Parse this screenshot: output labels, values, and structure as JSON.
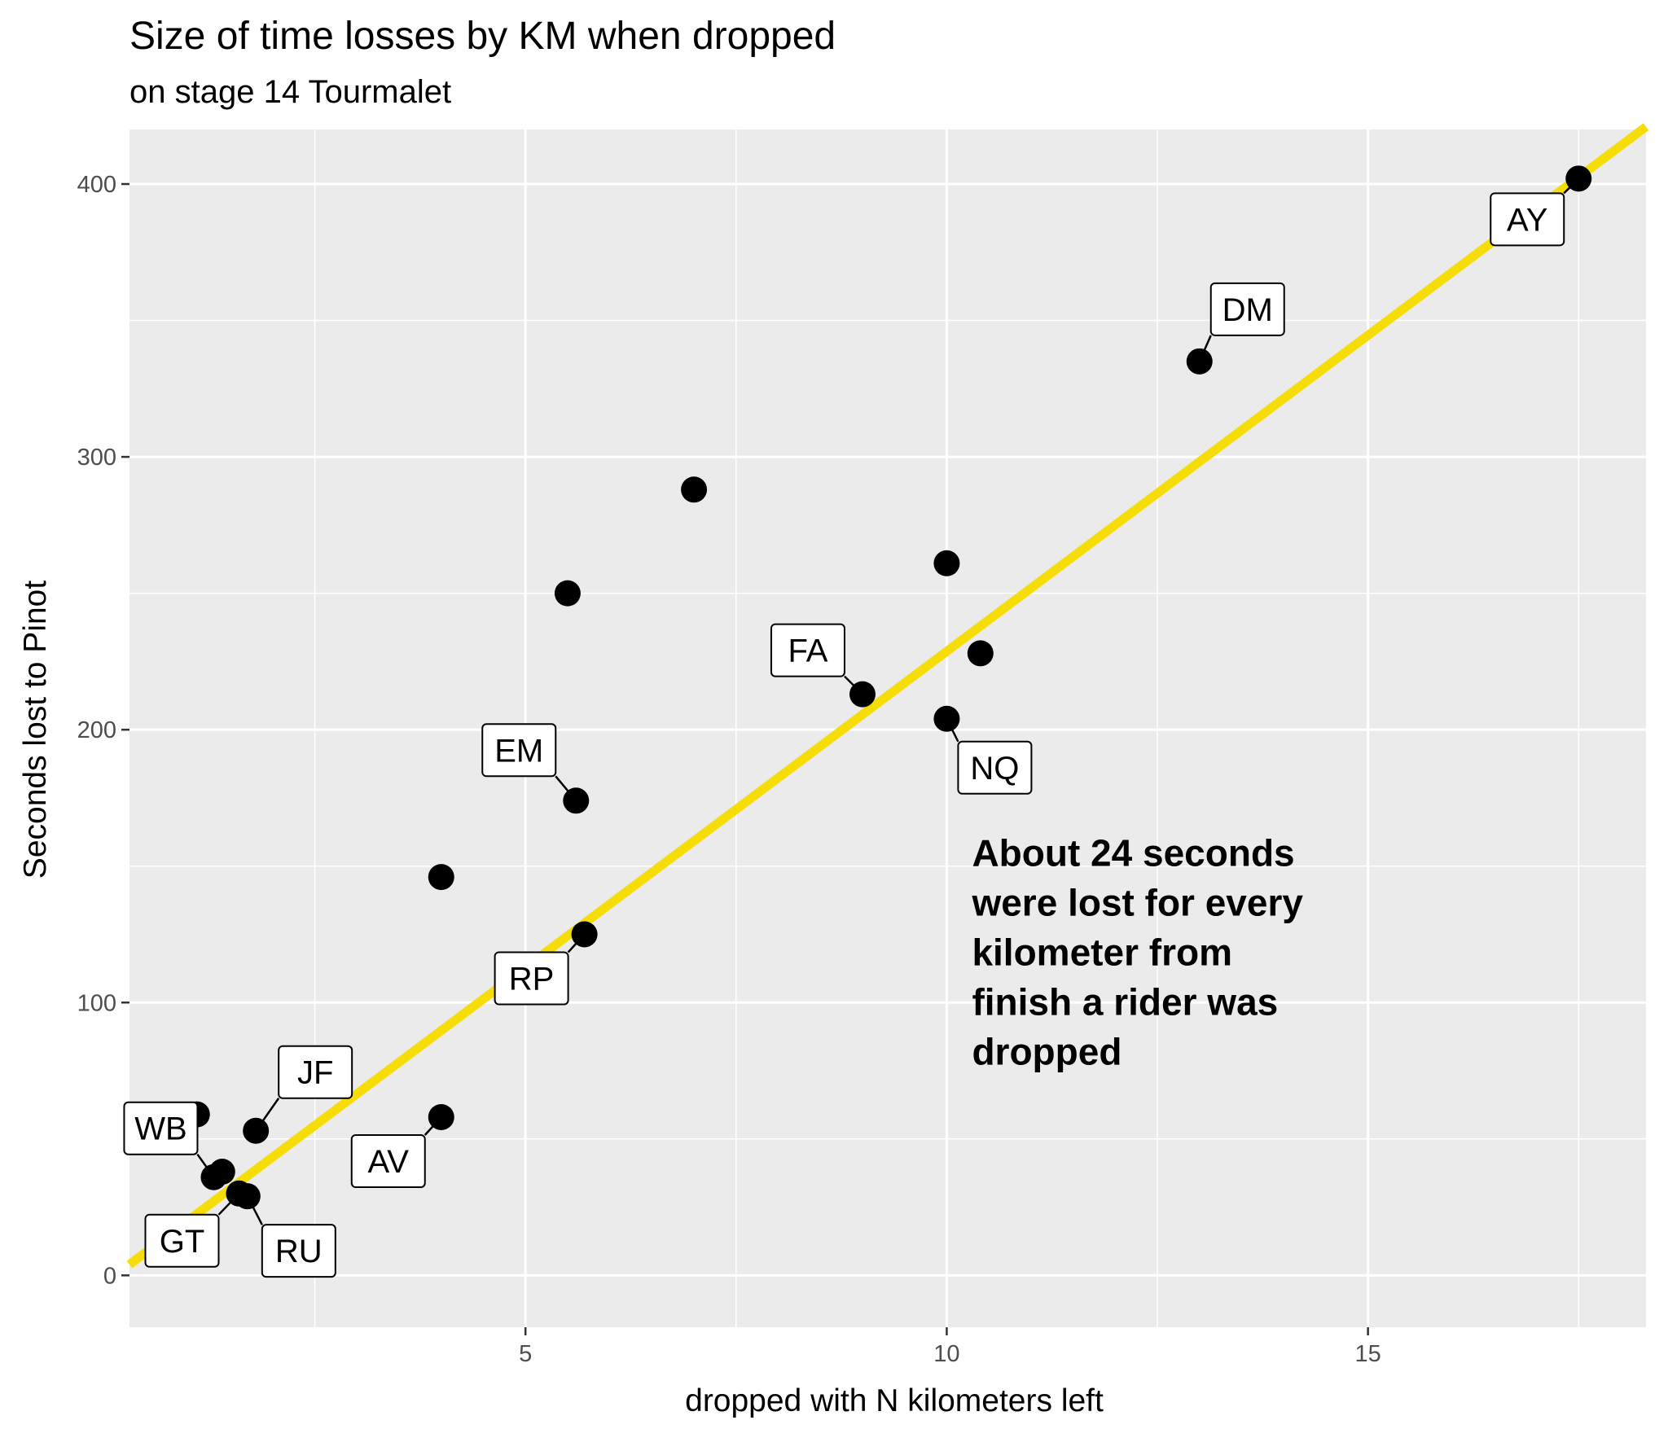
{
  "chart_data": {
    "type": "scatter",
    "title": "Size of time losses by KM when dropped",
    "subtitle": "on stage 14 Tourmalet",
    "xlabel": "dropped with N kilometers left",
    "ylabel": "Seconds lost to Pinot",
    "xlim": [
      0.3,
      18.3
    ],
    "ylim": [
      -19,
      420
    ],
    "x_ticks": [
      5,
      10,
      15
    ],
    "x_tick_labels": [
      "5",
      "10",
      "15"
    ],
    "x_minor_ticks": [
      2.5,
      7.5,
      12.5,
      17.5
    ],
    "y_ticks": [
      0,
      100,
      200,
      300,
      400
    ],
    "y_tick_labels": [
      "0",
      "100",
      "200",
      "300",
      "400"
    ],
    "y_minor_ticks": [
      50,
      150,
      250,
      350
    ],
    "points": [
      {
        "x": 1.1,
        "y": 59,
        "label": ""
      },
      {
        "x": 1.4,
        "y": 38,
        "label": ""
      },
      {
        "x": 1.3,
        "y": 36,
        "label": "WB"
      },
      {
        "x": 1.6,
        "y": 30,
        "label": "GT"
      },
      {
        "x": 1.8,
        "y": 53,
        "label": "JF"
      },
      {
        "x": 1.7,
        "y": 29,
        "label": "RU"
      },
      {
        "x": 4.0,
        "y": 58,
        "label": "AV"
      },
      {
        "x": 4.0,
        "y": 146,
        "label": ""
      },
      {
        "x": 5.5,
        "y": 250,
        "label": ""
      },
      {
        "x": 5.6,
        "y": 174,
        "label": "EM"
      },
      {
        "x": 5.7,
        "y": 125,
        "label": "RP"
      },
      {
        "x": 7.0,
        "y": 288,
        "label": ""
      },
      {
        "x": 9.0,
        "y": 213,
        "label": "FA"
      },
      {
        "x": 10.0,
        "y": 261,
        "label": ""
      },
      {
        "x": 10.4,
        "y": 228,
        "label": ""
      },
      {
        "x": 10.0,
        "y": 204,
        "label": "NQ"
      },
      {
        "x": 13.0,
        "y": 335,
        "label": "DM"
      },
      {
        "x": 17.5,
        "y": 402,
        "label": "AY"
      }
    ],
    "trend_line": {
      "x": [
        0.3,
        18.3
      ],
      "y": [
        4,
        421
      ],
      "color": "#F5DD05"
    },
    "annotation": {
      "lines": [
        "About 24 seconds",
        "were lost for every",
        "kilometer from",
        "finish a rider was",
        "dropped"
      ],
      "x": 10.3,
      "y": 150
    }
  }
}
